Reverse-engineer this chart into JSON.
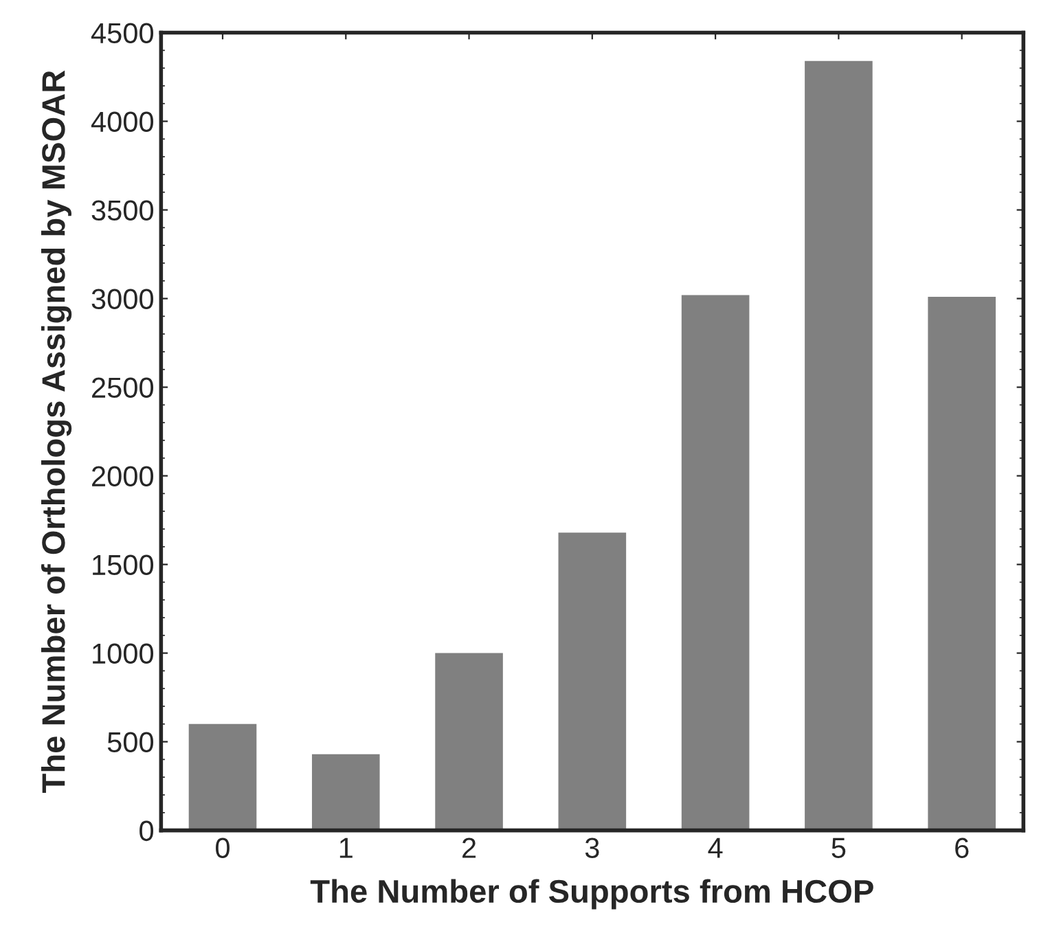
{
  "chart_data": {
    "type": "bar",
    "xlabel": "The Number of Supports from HCOP",
    "ylabel": "The Number of Orthologs Assigned by MSOAR",
    "categories": [
      "0",
      "1",
      "2",
      "3",
      "4",
      "5",
      "6"
    ],
    "values": [
      600,
      430,
      1000,
      1680,
      3020,
      4340,
      3010
    ],
    "color": "#808080",
    "ylim": [
      0,
      4500
    ],
    "yticks": [
      0,
      500,
      1000,
      1500,
      2000,
      2500,
      3000,
      3500,
      4000,
      4500
    ],
    "grid": false
  }
}
